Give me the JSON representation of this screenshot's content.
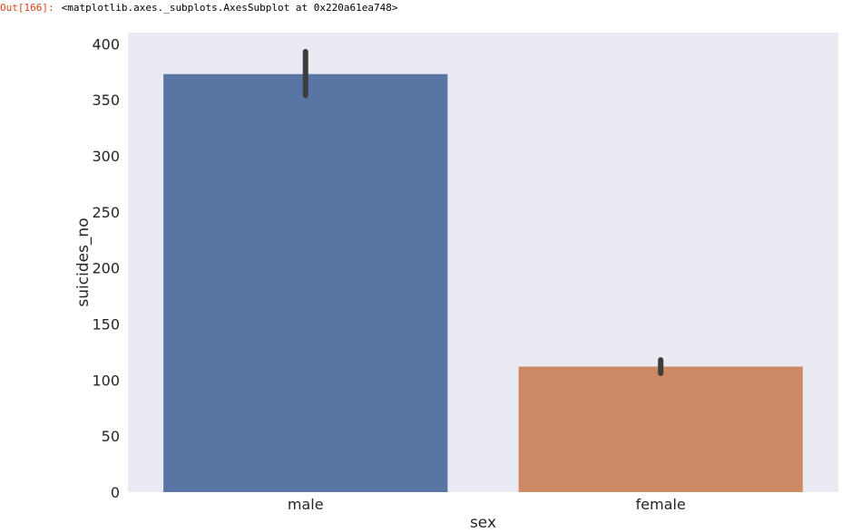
{
  "output": {
    "prompt": "Out[166]:",
    "text": "<matplotlib.axes._subplots.AxesSubplot at 0x220a61ea748>"
  },
  "chart_data": {
    "type": "bar",
    "title": "",
    "xlabel": "sex",
    "ylabel": "suicides_no",
    "categories": [
      "male",
      "female"
    ],
    "values": [
      373,
      112
    ],
    "error_bars": [
      [
        354,
        393
      ],
      [
        106,
        118
      ]
    ],
    "colors": [
      "#5975a4",
      "#cc8963"
    ],
    "ylim": [
      0,
      410
    ],
    "yticks": [
      0,
      50,
      100,
      150,
      200,
      250,
      300,
      350,
      400
    ],
    "grid": false,
    "legend": "none",
    "background": "#eaeaf2"
  }
}
